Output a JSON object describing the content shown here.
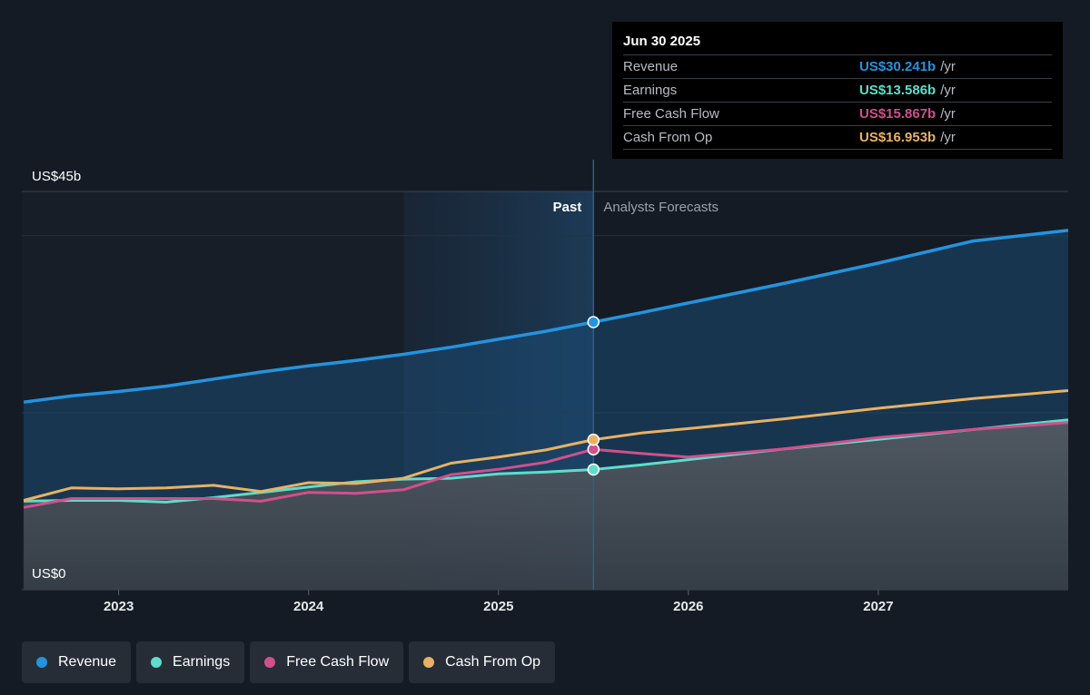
{
  "chart_data": {
    "type": "line",
    "y_axis": {
      "top_label": "US$45b",
      "bottom_label": "US$0",
      "ylim": [
        0,
        45
      ]
    },
    "x_ticks": [
      "2023",
      "2024",
      "2025",
      "2026",
      "2027"
    ],
    "x_range": [
      2022.49,
      2028.0
    ],
    "divider_x": 2025.5,
    "highlight_start_x": 2024.5,
    "past_label": "Past",
    "forecast_label": "Analysts Forecasts",
    "series": [
      {
        "name": "Revenue",
        "color": "#2394df",
        "area": true,
        "points": [
          [
            2022.5,
            21.2
          ],
          [
            2022.75,
            21.9
          ],
          [
            2023.0,
            22.4
          ],
          [
            2023.25,
            23.0
          ],
          [
            2023.5,
            23.8
          ],
          [
            2023.75,
            24.6
          ],
          [
            2024.0,
            25.3
          ],
          [
            2024.25,
            25.9
          ],
          [
            2024.5,
            26.6
          ],
          [
            2024.75,
            27.4
          ],
          [
            2025.0,
            28.3
          ],
          [
            2025.25,
            29.2
          ],
          [
            2025.5,
            30.241
          ],
          [
            2025.75,
            31.3
          ],
          [
            2026.0,
            32.4
          ],
          [
            2026.5,
            34.6
          ],
          [
            2027.0,
            36.9
          ],
          [
            2027.5,
            39.4
          ],
          [
            2028.0,
            40.6
          ]
        ]
      },
      {
        "name": "Earnings",
        "color": "#5dddca",
        "area": true,
        "points": [
          [
            2022.5,
            10.0
          ],
          [
            2022.75,
            10.1
          ],
          [
            2023.0,
            10.1
          ],
          [
            2023.25,
            9.9
          ],
          [
            2023.5,
            10.4
          ],
          [
            2023.75,
            11.0
          ],
          [
            2024.0,
            11.6
          ],
          [
            2024.25,
            12.2
          ],
          [
            2024.5,
            12.5
          ],
          [
            2024.75,
            12.6
          ],
          [
            2025.0,
            13.1
          ],
          [
            2025.25,
            13.3
          ],
          [
            2025.5,
            13.586
          ],
          [
            2025.75,
            14.1
          ],
          [
            2026.0,
            14.7
          ],
          [
            2026.5,
            15.9
          ],
          [
            2027.0,
            17.0
          ],
          [
            2027.5,
            18.1
          ],
          [
            2028.0,
            19.2
          ]
        ]
      },
      {
        "name": "Free Cash Flow",
        "color": "#d0508c",
        "area": false,
        "points": [
          [
            2022.5,
            9.3
          ],
          [
            2022.75,
            10.3
          ],
          [
            2023.0,
            10.3
          ],
          [
            2023.25,
            10.3
          ],
          [
            2023.5,
            10.3
          ],
          [
            2023.75,
            10.0
          ],
          [
            2024.0,
            11.0
          ],
          [
            2024.25,
            10.9
          ],
          [
            2024.5,
            11.3
          ],
          [
            2024.75,
            13.0
          ],
          [
            2025.0,
            13.6
          ],
          [
            2025.25,
            14.4
          ],
          [
            2025.5,
            15.867
          ],
          [
            2025.75,
            15.4
          ],
          [
            2026.0,
            15.0
          ],
          [
            2026.5,
            15.9
          ],
          [
            2027.0,
            17.2
          ],
          [
            2027.5,
            18.1
          ],
          [
            2028.0,
            18.9
          ]
        ]
      },
      {
        "name": "Cash From Op",
        "color": "#e8b264",
        "area": false,
        "points": [
          [
            2022.5,
            10.1
          ],
          [
            2022.75,
            11.5
          ],
          [
            2023.0,
            11.4
          ],
          [
            2023.25,
            11.5
          ],
          [
            2023.5,
            11.8
          ],
          [
            2023.75,
            11.1
          ],
          [
            2024.0,
            12.1
          ],
          [
            2024.25,
            12.0
          ],
          [
            2024.5,
            12.6
          ],
          [
            2024.75,
            14.3
          ],
          [
            2025.0,
            15.0
          ],
          [
            2025.25,
            15.8
          ],
          [
            2025.5,
            16.953
          ],
          [
            2025.75,
            17.7
          ],
          [
            2026.0,
            18.2
          ],
          [
            2026.5,
            19.3
          ],
          [
            2027.0,
            20.5
          ],
          [
            2027.5,
            21.6
          ],
          [
            2028.0,
            22.5
          ]
        ]
      }
    ]
  },
  "tooltip": {
    "date": "Jun 30 2025",
    "rows": [
      {
        "label": "Revenue",
        "value": "US$30.241b",
        "unit": "/yr",
        "color": "#2394df"
      },
      {
        "label": "Earnings",
        "value": "US$13.586b",
        "unit": "/yr",
        "color": "#5dddca"
      },
      {
        "label": "Free Cash Flow",
        "value": "US$15.867b",
        "unit": "/yr",
        "color": "#d0508c"
      },
      {
        "label": "Cash From Op",
        "value": "US$16.953b",
        "unit": "/yr",
        "color": "#e8b264"
      }
    ]
  },
  "legend": [
    {
      "label": "Revenue",
      "color": "#2394df"
    },
    {
      "label": "Earnings",
      "color": "#5dddca"
    },
    {
      "label": "Free Cash Flow",
      "color": "#d0508c"
    },
    {
      "label": "Cash From Op",
      "color": "#e8b264"
    }
  ]
}
